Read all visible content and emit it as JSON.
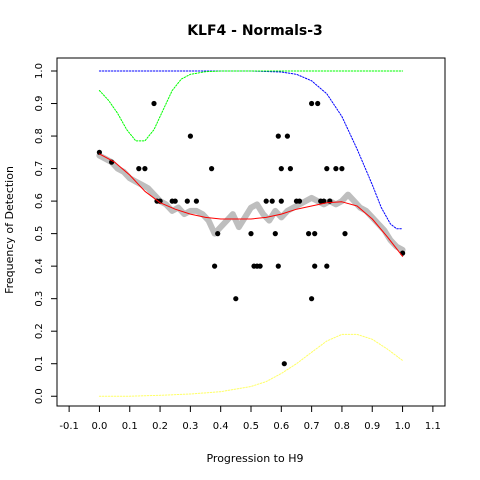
{
  "chart_data": {
    "type": "scatter",
    "title": "KLF4 - Normals-3",
    "xlabel": "Progression to H9",
    "ylabel": "Frequency of Detection",
    "xlim": [
      -0.14,
      1.14
    ],
    "ylim": [
      -0.03,
      1.04
    ],
    "xticks": [
      "-0.1",
      "0.0",
      "0.1",
      "0.2",
      "0.3",
      "0.4",
      "0.5",
      "0.6",
      "0.7",
      "0.8",
      "0.9",
      "1.0",
      "1.1"
    ],
    "yticks": [
      "0.0",
      "0.1",
      "0.2",
      "0.3",
      "0.4",
      "0.5",
      "0.6",
      "0.7",
      "0.8",
      "0.9",
      "1.0"
    ],
    "colors": {
      "points": "#000000",
      "smooth_band": "#bebebe",
      "fit": "#ff0000",
      "upper_blue": "#0000ff",
      "upper_green": "#00ff00",
      "lower_yellow": "#ffff66"
    },
    "points": [
      {
        "x": 0.0,
        "y": 0.75
      },
      {
        "x": 0.04,
        "y": 0.72
      },
      {
        "x": 0.13,
        "y": 0.7
      },
      {
        "x": 0.15,
        "y": 0.7
      },
      {
        "x": 0.18,
        "y": 0.9
      },
      {
        "x": 0.19,
        "y": 0.6
      },
      {
        "x": 0.2,
        "y": 0.6
      },
      {
        "x": 0.24,
        "y": 0.6
      },
      {
        "x": 0.25,
        "y": 0.6
      },
      {
        "x": 0.29,
        "y": 0.6
      },
      {
        "x": 0.3,
        "y": 0.8
      },
      {
        "x": 0.32,
        "y": 0.6
      },
      {
        "x": 0.37,
        "y": 0.7
      },
      {
        "x": 0.38,
        "y": 0.4
      },
      {
        "x": 0.39,
        "y": 0.5
      },
      {
        "x": 0.45,
        "y": 0.3
      },
      {
        "x": 0.5,
        "y": 0.5
      },
      {
        "x": 0.51,
        "y": 0.4
      },
      {
        "x": 0.52,
        "y": 0.4
      },
      {
        "x": 0.53,
        "y": 0.4
      },
      {
        "x": 0.55,
        "y": 0.6
      },
      {
        "x": 0.57,
        "y": 0.6
      },
      {
        "x": 0.58,
        "y": 0.5
      },
      {
        "x": 0.59,
        "y": 0.8
      },
      {
        "x": 0.59,
        "y": 0.4
      },
      {
        "x": 0.6,
        "y": 0.6
      },
      {
        "x": 0.6,
        "y": 0.7
      },
      {
        "x": 0.61,
        "y": 0.1
      },
      {
        "x": 0.62,
        "y": 0.8
      },
      {
        "x": 0.63,
        "y": 0.7
      },
      {
        "x": 0.65,
        "y": 0.6
      },
      {
        "x": 0.66,
        "y": 0.6
      },
      {
        "x": 0.69,
        "y": 0.5
      },
      {
        "x": 0.7,
        "y": 0.9
      },
      {
        "x": 0.7,
        "y": 0.3
      },
      {
        "x": 0.71,
        "y": 0.5
      },
      {
        "x": 0.71,
        "y": 0.4
      },
      {
        "x": 0.72,
        "y": 0.9
      },
      {
        "x": 0.73,
        "y": 0.6
      },
      {
        "x": 0.74,
        "y": 0.6
      },
      {
        "x": 0.75,
        "y": 0.4
      },
      {
        "x": 0.75,
        "y": 0.7
      },
      {
        "x": 0.76,
        "y": 0.6
      },
      {
        "x": 0.78,
        "y": 0.7
      },
      {
        "x": 0.8,
        "y": 0.7
      },
      {
        "x": 0.81,
        "y": 0.5
      },
      {
        "x": 1.0,
        "y": 0.44
      }
    ],
    "smooth_band": {
      "x": [
        0.0,
        0.02,
        0.04,
        0.06,
        0.08,
        0.1,
        0.12,
        0.14,
        0.16,
        0.18,
        0.2,
        0.22,
        0.24,
        0.26,
        0.28,
        0.3,
        0.32,
        0.34,
        0.36,
        0.38,
        0.4,
        0.42,
        0.44,
        0.46,
        0.48,
        0.5,
        0.52,
        0.54,
        0.56,
        0.58,
        0.6,
        0.62,
        0.64,
        0.66,
        0.68,
        0.7,
        0.72,
        0.74,
        0.76,
        0.78,
        0.8,
        0.82,
        0.84,
        0.86,
        0.88,
        0.9,
        0.92,
        0.94,
        0.96,
        0.98,
        1.0
      ],
      "y": [
        0.74,
        0.73,
        0.72,
        0.7,
        0.69,
        0.67,
        0.66,
        0.65,
        0.64,
        0.62,
        0.6,
        0.59,
        0.57,
        0.58,
        0.56,
        0.57,
        0.57,
        0.56,
        0.54,
        0.5,
        0.52,
        0.54,
        0.56,
        0.52,
        0.55,
        0.58,
        0.59,
        0.56,
        0.54,
        0.57,
        0.55,
        0.57,
        0.58,
        0.59,
        0.6,
        0.61,
        0.6,
        0.59,
        0.6,
        0.59,
        0.6,
        0.62,
        0.6,
        0.58,
        0.57,
        0.55,
        0.53,
        0.51,
        0.48,
        0.46,
        0.45
      ]
    },
    "fit": {
      "x": [
        0.0,
        0.05,
        0.1,
        0.15,
        0.2,
        0.25,
        0.3,
        0.35,
        0.4,
        0.45,
        0.5,
        0.55,
        0.6,
        0.65,
        0.7,
        0.75,
        0.8,
        0.85,
        0.9,
        0.95,
        1.0
      ],
      "y": [
        0.745,
        0.72,
        0.68,
        0.63,
        0.595,
        0.575,
        0.56,
        0.55,
        0.545,
        0.545,
        0.545,
        0.55,
        0.56,
        0.575,
        0.585,
        0.595,
        0.598,
        0.585,
        0.545,
        0.49,
        0.43
      ]
    },
    "upper_blue": {
      "x": [
        0.0,
        0.1,
        0.2,
        0.3,
        0.4,
        0.5,
        0.6,
        0.65,
        0.7,
        0.75,
        0.8,
        0.85,
        0.9,
        0.93,
        0.96,
        0.98,
        1.0
      ],
      "y": [
        1.0,
        1.0,
        1.0,
        1.0,
        1.0,
        1.0,
        0.997,
        0.99,
        0.97,
        0.93,
        0.86,
        0.76,
        0.65,
        0.58,
        0.53,
        0.515,
        0.515
      ]
    },
    "upper_green": {
      "x": [
        0.0,
        0.03,
        0.06,
        0.09,
        0.12,
        0.15,
        0.18,
        0.21,
        0.24,
        0.27,
        0.3,
        0.35,
        0.4,
        0.5,
        0.6,
        0.7,
        0.8,
        0.9,
        1.0
      ],
      "y": [
        0.94,
        0.91,
        0.87,
        0.82,
        0.785,
        0.785,
        0.82,
        0.88,
        0.94,
        0.975,
        0.99,
        0.998,
        1.0,
        1.0,
        1.0,
        1.0,
        1.0,
        1.0,
        1.0
      ]
    },
    "lower_yellow": {
      "x": [
        0.0,
        0.1,
        0.2,
        0.3,
        0.4,
        0.5,
        0.55,
        0.6,
        0.65,
        0.7,
        0.75,
        0.8,
        0.85,
        0.9,
        0.95,
        1.0
      ],
      "y": [
        0.0,
        0.0,
        0.003,
        0.007,
        0.014,
        0.03,
        0.045,
        0.07,
        0.1,
        0.135,
        0.17,
        0.19,
        0.19,
        0.175,
        0.145,
        0.11
      ]
    }
  }
}
